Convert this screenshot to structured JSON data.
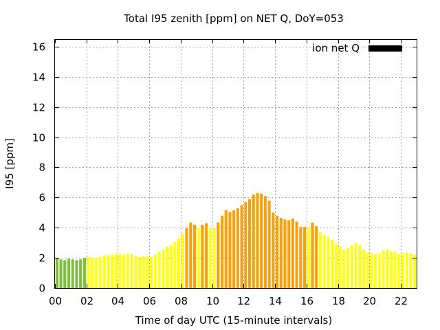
{
  "chart_data": {
    "type": "bar",
    "title": "Total I95 zenith [ppm] on NET Q, DoY=053",
    "xlabel": "Time of day UTC (15-minute intervals)",
    "ylabel": "I95 [ppm]",
    "xlim": [
      0,
      23
    ],
    "ylim": [
      0,
      16.5
    ],
    "x_ticks": [
      "00",
      "02",
      "04",
      "06",
      "08",
      "10",
      "12",
      "14",
      "16",
      "18",
      "20",
      "22"
    ],
    "y_ticks": [
      "0",
      "2",
      "4",
      "6",
      "8",
      "10",
      "12",
      "14",
      "16"
    ],
    "grid": true,
    "legend": {
      "position": "top-right",
      "label": "ion net Q",
      "color": "#000000"
    },
    "bar_interval_hours": 0.25,
    "color_scale": {
      "green": "#7fbf3f",
      "yellow": "#ffff1a",
      "orange": "#f5a20e"
    },
    "values": [
      2.0,
      1.9,
      1.85,
      1.95,
      1.9,
      1.85,
      1.9,
      2.0,
      2.05,
      2.0,
      2.0,
      2.05,
      2.15,
      2.2,
      2.2,
      2.25,
      2.25,
      2.2,
      2.3,
      2.25,
      2.1,
      2.05,
      2.1,
      2.1,
      2.05,
      2.2,
      2.4,
      2.55,
      2.75,
      2.85,
      3.05,
      3.3,
      3.6,
      4.0,
      4.35,
      4.2,
      3.95,
      4.2,
      4.3,
      3.95,
      4.0,
      4.35,
      4.8,
      5.15,
      5.05,
      5.15,
      5.3,
      5.5,
      5.7,
      5.9,
      6.2,
      6.3,
      6.25,
      6.1,
      5.8,
      5.0,
      4.8,
      4.65,
      4.55,
      4.5,
      4.6,
      4.4,
      4.05,
      4.05,
      4.0,
      4.35,
      4.1,
      3.7,
      3.5,
      3.4,
      3.2,
      2.95,
      2.75,
      2.55,
      2.65,
      2.85,
      3.0,
      2.85,
      2.55,
      2.35,
      2.3,
      2.25,
      2.3,
      2.5,
      2.55,
      2.45,
      2.4,
      2.25,
      2.3,
      2.35,
      2.3,
      2.2
    ],
    "bar_colors": [
      "green",
      "green",
      "green",
      "green",
      "green",
      "green",
      "green",
      "green",
      "yellow",
      "yellow",
      "yellow",
      "yellow",
      "yellow",
      "yellow",
      "yellow",
      "yellow",
      "yellow",
      "yellow",
      "yellow",
      "yellow",
      "yellow",
      "yellow",
      "yellow",
      "yellow",
      "yellow",
      "yellow",
      "yellow",
      "yellow",
      "yellow",
      "yellow",
      "yellow",
      "yellow",
      "yellow",
      "orange",
      "orange",
      "orange",
      "yellow",
      "orange",
      "orange",
      "yellow",
      "yellow",
      "orange",
      "orange",
      "orange",
      "orange",
      "orange",
      "orange",
      "orange",
      "orange",
      "orange",
      "orange",
      "orange",
      "orange",
      "orange",
      "orange",
      "orange",
      "orange",
      "orange",
      "orange",
      "orange",
      "orange",
      "orange",
      "orange",
      "orange",
      "yellow",
      "orange",
      "orange",
      "yellow",
      "yellow",
      "yellow",
      "yellow",
      "yellow",
      "yellow",
      "yellow",
      "yellow",
      "yellow",
      "yellow",
      "yellow",
      "yellow",
      "yellow",
      "yellow",
      "yellow",
      "yellow",
      "yellow",
      "yellow",
      "yellow",
      "yellow",
      "yellow",
      "yellow",
      "yellow",
      "yellow",
      "yellow"
    ]
  }
}
